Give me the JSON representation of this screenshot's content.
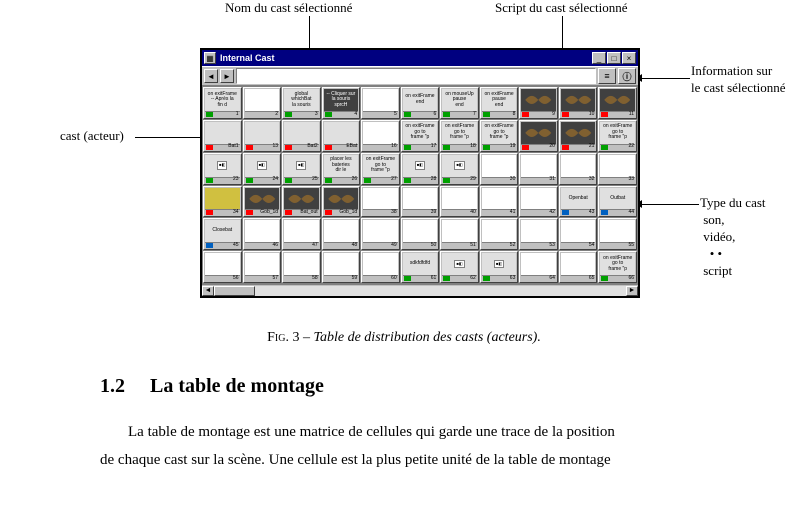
{
  "labels": {
    "top_left": "Nom du cast  sélectionné",
    "top_right": "Script du cast sélectionné",
    "right_info_l1": "Information sur",
    "right_info_l2": "le cast sélectionné",
    "left_actor": "cast (acteur)",
    "right_type_l1": "Type du cast",
    "right_type_l2": "son,",
    "right_type_l3": "vidéo,",
    "right_type_l4": "• •",
    "right_type_l5": "script"
  },
  "window": {
    "title": "Internal Cast",
    "minimize": "_",
    "maximize": "□",
    "close": "×",
    "prev": "◄",
    "next": "►",
    "script_glyph": "≡",
    "info_glyph": "ⓘ"
  },
  "cells": [
    {
      "n": 1,
      "text": "on exitFrame\n-- Après la\nfin d",
      "type": "script",
      "dark": false
    },
    {
      "n": 2,
      "text": "",
      "type": "none",
      "empty": true
    },
    {
      "n": 3,
      "text": "global\nwhichBat\nla souris",
      "type": "script",
      "dark": false
    },
    {
      "n": 4,
      "text": "-- Cliquer sur\nla souris\nsprcH",
      "type": "script",
      "dark": true
    },
    {
      "n": 5,
      "text": "",
      "type": "none",
      "empty": true
    },
    {
      "n": 6,
      "text": "on exitFrame\nend",
      "type": "script",
      "dark": false
    },
    {
      "n": 7,
      "text": "on mouseUp\npause\nend",
      "type": "script",
      "dark": false
    },
    {
      "n": 8,
      "text": "on exitFrame\npause\nend",
      "type": "script",
      "dark": false
    },
    {
      "n": 9,
      "text": "",
      "type": "bitmap",
      "dark": true,
      "bat": true
    },
    {
      "n": 10,
      "text": "",
      "type": "bitmap",
      "dark": true,
      "bat": true
    },
    {
      "n": 11,
      "text": "Curs",
      "type": "bitmap",
      "dark": true,
      "bat": true
    },
    {
      "n": 12,
      "text": "",
      "type": "bitmap",
      "dark": false,
      "label": "Bat1"
    },
    {
      "n": 13,
      "text": "",
      "type": "bitmap",
      "dark": false,
      "label": ""
    },
    {
      "n": 14,
      "text": "",
      "type": "bitmap",
      "dark": false,
      "label": "Bat2"
    },
    {
      "n": 15,
      "text": "",
      "type": "bitmap",
      "dark": false,
      "label": "EBat"
    },
    {
      "n": 16,
      "text": "",
      "type": "none",
      "empty": true
    },
    {
      "n": 17,
      "text": "on exitFrame\ngo to\nframe \"p",
      "type": "script",
      "dark": false
    },
    {
      "n": 18,
      "text": "on exitFrame\ngo to\nframe \"p",
      "type": "script",
      "dark": false
    },
    {
      "n": 19,
      "text": "on exitFrame\ngo to\nframe \"p",
      "type": "script",
      "dark": false
    },
    {
      "n": 20,
      "text": "",
      "type": "bitmap",
      "dark": true,
      "bat": true
    },
    {
      "n": 21,
      "text": "",
      "type": "bitmap",
      "dark": true,
      "bat": true
    },
    {
      "n": 22,
      "text": "on exitFrame\ngo to\nframe \"p",
      "type": "script",
      "dark": false
    },
    {
      "n": 23,
      "text": "",
      "type": "script",
      "dark": false,
      "mini": true
    },
    {
      "n": 24,
      "text": "",
      "type": "script",
      "dark": false,
      "mini": true
    },
    {
      "n": 25,
      "text": "",
      "type": "script",
      "dark": false,
      "mini": true
    },
    {
      "n": 26,
      "text": "placer les\nbateries\ndir le",
      "type": "script",
      "dark": false
    },
    {
      "n": 27,
      "text": "on exitFrame\ngo to\nframe \"p",
      "type": "script",
      "dark": false
    },
    {
      "n": 28,
      "text": "",
      "type": "script",
      "dark": false,
      "mini": true
    },
    {
      "n": 29,
      "text": "",
      "type": "script",
      "dark": false,
      "mini": true
    },
    {
      "n": 30,
      "text": "",
      "type": "none",
      "empty": true
    },
    {
      "n": 31,
      "text": "",
      "type": "none",
      "empty": true
    },
    {
      "n": 32,
      "text": "",
      "type": "none",
      "empty": true
    },
    {
      "n": 33,
      "text": "",
      "type": "none",
      "empty": true
    },
    {
      "n": 34,
      "text": "",
      "type": "bitmap",
      "dark": false,
      "yellow": true
    },
    {
      "n": 35,
      "text": "",
      "type": "bitmap",
      "dark": true,
      "bat": true,
      "label": "Gob_1d"
    },
    {
      "n": 36,
      "text": "",
      "type": "bitmap",
      "dark": true,
      "bat": true,
      "label": "Bat_out"
    },
    {
      "n": 37,
      "text": "",
      "type": "bitmap",
      "dark": true,
      "bat": true,
      "label": "Gob_1d"
    },
    {
      "n": 38,
      "text": "",
      "type": "none",
      "empty": true
    },
    {
      "n": 39,
      "text": "",
      "type": "none",
      "empty": true
    },
    {
      "n": 40,
      "text": "",
      "type": "none",
      "empty": true
    },
    {
      "n": 41,
      "text": "",
      "type": "none",
      "empty": true
    },
    {
      "n": 42,
      "text": "",
      "type": "none",
      "empty": true
    },
    {
      "n": 43,
      "text": "Openbat",
      "type": "sound",
      "dark": false
    },
    {
      "n": 44,
      "text": "Outbat",
      "type": "sound",
      "dark": false
    },
    {
      "n": 45,
      "text": "Closebat",
      "type": "sound",
      "dark": false
    },
    {
      "n": 46,
      "text": "",
      "type": "none",
      "empty": true
    },
    {
      "n": 47,
      "text": "",
      "type": "none",
      "empty": true
    },
    {
      "n": 48,
      "text": "",
      "type": "none",
      "empty": true
    },
    {
      "n": 49,
      "text": "",
      "type": "none",
      "empty": true
    },
    {
      "n": 50,
      "text": "",
      "type": "none",
      "empty": true
    },
    {
      "n": 51,
      "text": "",
      "type": "none",
      "empty": true
    },
    {
      "n": 52,
      "text": "",
      "type": "none",
      "empty": true
    },
    {
      "n": 53,
      "text": "",
      "type": "none",
      "empty": true
    },
    {
      "n": 54,
      "text": "",
      "type": "none",
      "empty": true
    },
    {
      "n": 55,
      "text": "",
      "type": "none",
      "empty": true
    },
    {
      "n": 56,
      "text": "",
      "type": "none",
      "empty": true
    },
    {
      "n": 57,
      "text": "",
      "type": "none",
      "empty": true
    },
    {
      "n": 58,
      "text": "",
      "type": "none",
      "empty": true
    },
    {
      "n": 59,
      "text": "",
      "type": "none",
      "empty": true
    },
    {
      "n": 60,
      "text": "",
      "type": "none",
      "empty": true
    },
    {
      "n": 61,
      "text": "sdkfdfdfd",
      "type": "script",
      "dark": false
    },
    {
      "n": 62,
      "text": "",
      "type": "script",
      "dark": false,
      "mini": true
    },
    {
      "n": 63,
      "text": "",
      "type": "script",
      "dark": false,
      "mini": true
    },
    {
      "n": 64,
      "text": "",
      "type": "none",
      "empty": true
    },
    {
      "n": 65,
      "text": "",
      "type": "none",
      "empty": true
    },
    {
      "n": 66,
      "text": "on exitFrame\ngo to\nframe \"p",
      "type": "script",
      "dark": false
    }
  ],
  "caption": {
    "fig": "Fig. 3",
    "dash": "–",
    "text": "Table de distribution des casts (acteurs)."
  },
  "heading": {
    "num": "1.2",
    "title": "La table de montage"
  },
  "body": {
    "line1": "La table de montage est une matrice de cellules qui garde une trace de la position",
    "line2": "de chaque cast sur la scène. Une cellule est la plus petite unité de la table de montage"
  }
}
